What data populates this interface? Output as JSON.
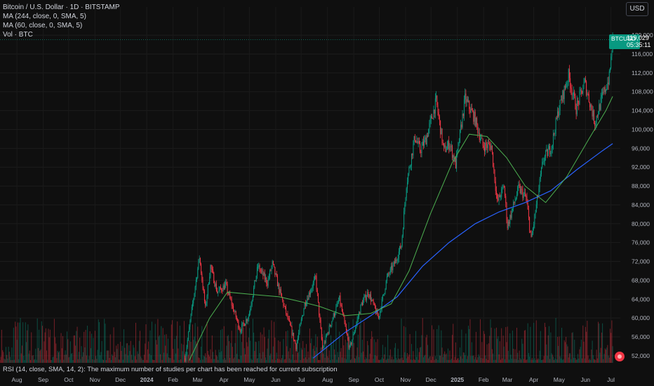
{
  "legend": {
    "symbol_line": "Bitcoin / U.S. Dollar · 1D · BITSTAMP",
    "ma1": "MA (244, close, 0, SMA, 5)",
    "ma2": "MA (60, close, 0, SMA, 5)",
    "vol": "Vol · BTC"
  },
  "currency_button": "USD",
  "rsi_message": "RSI (14, close, SMA, 14, 2): The maximum number of studies per chart has been reached for current subscription",
  "price_tag": {
    "symbol": "BTCUSD",
    "price": "119,029",
    "countdown": "05:35:11"
  },
  "colors": {
    "background": "#0f0f0f",
    "up": "#089981",
    "down": "#f23645",
    "ma244": "#2962ff",
    "ma60": "#4caf50",
    "axis_text": "#b2b5be"
  },
  "chart_data": {
    "type": "candlestick",
    "x_ticks": [
      "Aug",
      "Sep",
      "Oct",
      "Nov",
      "Dec",
      "2024",
      "Feb",
      "Mar",
      "Apr",
      "May",
      "Jun",
      "Jul",
      "Aug",
      "Sep",
      "Oct",
      "Nov",
      "Dec",
      "2025",
      "Feb",
      "Mar",
      "Apr",
      "May",
      "Jun",
      "Jul"
    ],
    "y_ticks": [
      "52,000",
      "56,000",
      "60,000",
      "64,000",
      "68,000",
      "72,000",
      "76,000",
      "80,000",
      "84,000",
      "88,000",
      "92,000",
      "96,000",
      "100,000",
      "104,000",
      "108,000",
      "112,000",
      "116,000",
      "120,000"
    ],
    "y_range": [
      50500,
      121500
    ],
    "x_range": [
      "2023-07-22",
      "2025-07-22"
    ],
    "close_series": [
      [
        "2024-02-25",
        51500
      ],
      [
        "2024-03-05",
        63000
      ],
      [
        "2024-03-13",
        73000
      ],
      [
        "2024-03-20",
        62000
      ],
      [
        "2024-03-26",
        71000
      ],
      [
        "2024-04-03",
        65500
      ],
      [
        "2024-04-13",
        67000
      ],
      [
        "2024-04-19",
        63500
      ],
      [
        "2024-04-30",
        57500
      ],
      [
        "2024-05-10",
        60500
      ],
      [
        "2024-05-21",
        71000
      ],
      [
        "2024-06-01",
        67500
      ],
      [
        "2024-06-07",
        71500
      ],
      [
        "2024-06-15",
        66000
      ],
      [
        "2024-06-24",
        60500
      ],
      [
        "2024-07-05",
        54000
      ],
      [
        "2024-07-15",
        63000
      ],
      [
        "2024-07-28",
        68500
      ],
      [
        "2024-08-05",
        53500
      ],
      [
        "2024-08-15",
        59000
      ],
      [
        "2024-08-25",
        64000
      ],
      [
        "2024-09-06",
        53500
      ],
      [
        "2024-09-20",
        63000
      ],
      [
        "2024-09-28",
        65500
      ],
      [
        "2024-10-10",
        60000
      ],
      [
        "2024-10-20",
        68500
      ],
      [
        "2024-10-30",
        72000
      ],
      [
        "2024-11-06",
        75500
      ],
      [
        "2024-11-12",
        88500
      ],
      [
        "2024-11-22",
        98500
      ],
      [
        "2024-11-28",
        95500
      ],
      [
        "2024-12-05",
        98000
      ],
      [
        "2024-12-17",
        106000
      ],
      [
        "2024-12-26",
        95500
      ],
      [
        "2025-01-02",
        97000
      ],
      [
        "2025-01-09",
        92500
      ],
      [
        "2025-01-20",
        106500
      ],
      [
        "2025-01-31",
        102500
      ],
      [
        "2025-02-10",
        96500
      ],
      [
        "2025-02-20",
        96500
      ],
      [
        "2025-02-27",
        84500
      ],
      [
        "2025-03-07",
        88000
      ],
      [
        "2025-03-11",
        79500
      ],
      [
        "2025-03-24",
        87500
      ],
      [
        "2025-04-02",
        85500
      ],
      [
        "2025-04-08",
        76500
      ],
      [
        "2025-04-22",
        93500
      ],
      [
        "2025-05-02",
        96500
      ],
      [
        "2025-05-10",
        104000
      ],
      [
        "2025-05-22",
        111500
      ],
      [
        "2025-05-31",
        104500
      ],
      [
        "2025-06-10",
        110000
      ],
      [
        "2025-06-22",
        101500
      ],
      [
        "2025-07-01",
        107000
      ],
      [
        "2025-07-09",
        111000
      ],
      [
        "2025-07-13",
        119029
      ]
    ],
    "ma60_series": [
      [
        "2024-03-01",
        51000
      ],
      [
        "2024-03-25",
        60000
      ],
      [
        "2024-04-15",
        65500
      ],
      [
        "2024-05-15",
        65000
      ],
      [
        "2024-06-15",
        64500
      ],
      [
        "2024-07-10",
        63500
      ],
      [
        "2024-08-01",
        62500
      ],
      [
        "2024-09-01",
        60500
      ],
      [
        "2024-10-01",
        61000
      ],
      [
        "2024-10-25",
        63000
      ],
      [
        "2024-11-15",
        70000
      ],
      [
        "2024-12-10",
        82000
      ],
      [
        "2025-01-05",
        93000
      ],
      [
        "2025-01-25",
        99000
      ],
      [
        "2025-02-15",
        98500
      ],
      [
        "2025-03-10",
        94000
      ],
      [
        "2025-04-01",
        88000
      ],
      [
        "2025-04-25",
        84500
      ],
      [
        "2025-05-20",
        90000
      ],
      [
        "2025-06-15",
        98000
      ],
      [
        "2025-07-05",
        104000
      ],
      [
        "2025-07-13",
        107000
      ]
    ],
    "ma244_series": [
      [
        "2024-07-25",
        51500
      ],
      [
        "2024-09-01",
        57000
      ],
      [
        "2024-10-01",
        60500
      ],
      [
        "2024-11-01",
        64500
      ],
      [
        "2024-12-01",
        71000
      ],
      [
        "2025-01-01",
        76000
      ],
      [
        "2025-02-01",
        80000
      ],
      [
        "2025-03-01",
        82500
      ],
      [
        "2025-04-01",
        84500
      ],
      [
        "2025-05-01",
        87000
      ],
      [
        "2025-06-01",
        91500
      ],
      [
        "2025-07-01",
        95500
      ],
      [
        "2025-07-13",
        97000
      ]
    ],
    "last_price": 119029
  }
}
